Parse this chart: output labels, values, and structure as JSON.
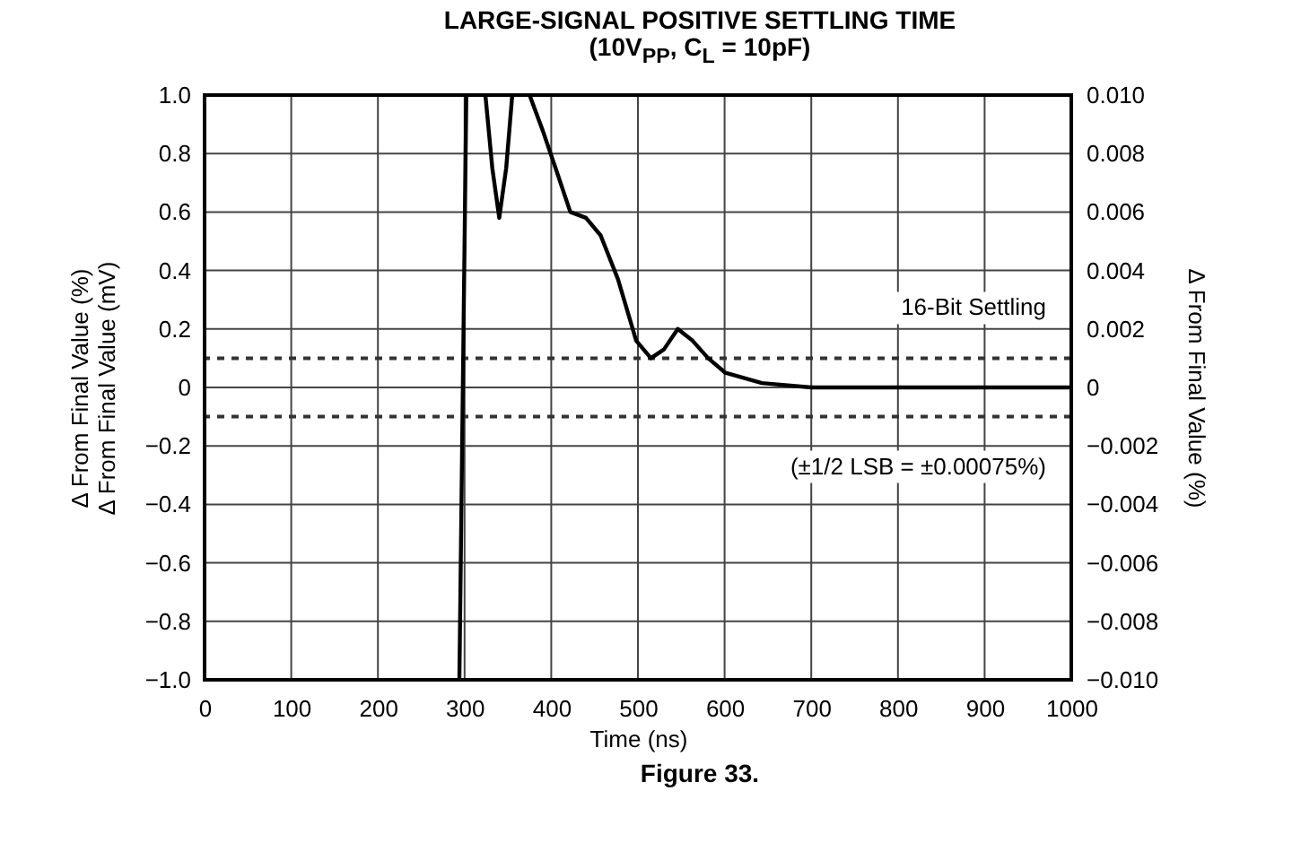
{
  "chart_data": {
    "type": "line",
    "title": "LARGE-SIGNAL POSITIVE SETTLING TIME",
    "subtitle": "(10V$_{PP}$, C$_{L}$ = 10pF)",
    "xlabel": "Time (ns)",
    "ylabel": "Δ From Final Value (%)\nΔ From Final Value (mV)",
    "y2label": "Δ From Final Value (%)",
    "x": [
      294,
      302,
      313,
      324,
      332,
      340,
      348,
      355,
      365,
      375,
      390,
      405,
      422,
      440,
      457,
      477,
      498,
      515,
      530,
      546,
      563,
      581,
      601,
      643,
      700,
      800,
      900,
      1000
    ],
    "series": [
      {
        "color": "#000000",
        "values": [
          -1.0,
          1.0,
          null,
          1.0,
          0.75,
          0.58,
          0.75,
          1.0,
          null,
          1.0,
          0.88,
          0.75,
          0.6,
          0.58,
          0.52,
          0.37,
          0.16,
          0.1,
          0.13,
          0.2,
          0.16,
          0.1,
          0.05,
          0.015,
          0,
          0,
          0,
          0
        ]
      }
    ],
    "xlim": [
      0,
      1000
    ],
    "xticks": [
      0,
      100,
      200,
      300,
      400,
      500,
      600,
      700,
      800,
      900,
      1000
    ],
    "ylim": [
      -1,
      1
    ],
    "yticks": [
      {
        "value": 1,
        "label": "1.0"
      },
      0.8,
      0.6,
      0.4,
      0.2,
      0,
      {
        "value": -0.2,
        "label": "−0.2"
      },
      {
        "value": -0.4,
        "label": "−0.4"
      },
      {
        "value": -0.6,
        "label": "−0.6"
      },
      {
        "value": -0.8,
        "label": "−0.8"
      },
      {
        "value": -1,
        "label": "−1.0"
      }
    ],
    "y2lim": [
      -0.01,
      0.01
    ],
    "y2ticks": [
      {
        "value": 0.01,
        "label": "0.010"
      },
      0.008,
      0.006,
      0.004,
      0.002,
      0,
      {
        "value": -0.002,
        "label": "−0.002"
      },
      {
        "value": -0.004,
        "label": "−0.004"
      },
      {
        "value": -0.006,
        "label": "−0.006"
      },
      {
        "value": -0.008,
        "label": "−0.008"
      },
      {
        "value": -0.01,
        "label": "−0.010"
      }
    ],
    "ref_lines": [
      {
        "axis": "y",
        "value": 0.1,
        "label": "16-Bit Settling",
        "color": "#333333",
        "line_style": "dashed"
      },
      {
        "axis": "y",
        "value": -0.1,
        "label": "(±1/2 LSB = ±0.00075%)",
        "color": "#333333",
        "line_style": "dashed"
      }
    ],
    "annotations": [
      "Figure 33."
    ],
    "grid": true,
    "marker": "none",
    "line_style": "solid"
  }
}
